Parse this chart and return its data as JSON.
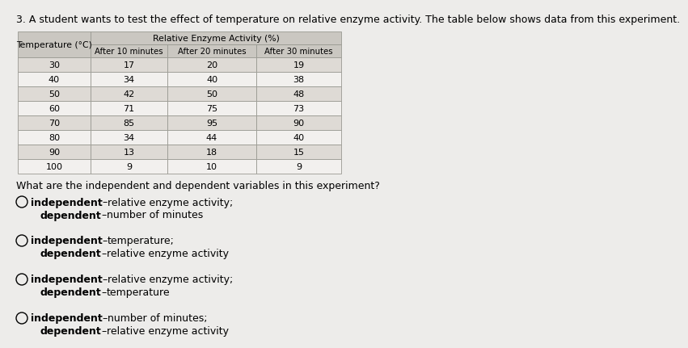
{
  "title": "3. A student wants to test the effect of temperature on relative enzyme activity. The table below shows data from this experiment.",
  "table_data": [
    [
      30,
      17,
      20,
      19
    ],
    [
      40,
      34,
      40,
      38
    ],
    [
      50,
      42,
      50,
      48
    ],
    [
      60,
      71,
      75,
      73
    ],
    [
      70,
      85,
      95,
      90
    ],
    [
      80,
      34,
      44,
      40
    ],
    [
      90,
      13,
      18,
      15
    ],
    [
      100,
      9,
      10,
      9
    ]
  ],
  "question": "What are the independent and dependent variables in this experiment?",
  "options": [
    [
      "independent",
      "–",
      "relative enzyme activity;",
      "dependent",
      "–",
      "number of minutes"
    ],
    [
      "independent",
      "–",
      "temperature;",
      "dependent",
      "–",
      "relative enzyme activity"
    ],
    [
      "independent",
      "–",
      "relative enzyme activity;",
      "dependent",
      "–",
      "temperature"
    ],
    [
      "independent",
      "–",
      "number of minutes;",
      "dependent",
      "–",
      "relative enzyme activity"
    ]
  ],
  "bg_color": "#edecea",
  "header_bg": "#cac7c1",
  "row_bg_light": "#dedad5",
  "row_bg_white": "#f2f0ee",
  "border_color": "#999992",
  "title_fontsize": 9.0,
  "table_header_fontsize": 7.8,
  "table_data_fontsize": 8.0,
  "question_fontsize": 9.0,
  "option_fontsize": 9.0
}
